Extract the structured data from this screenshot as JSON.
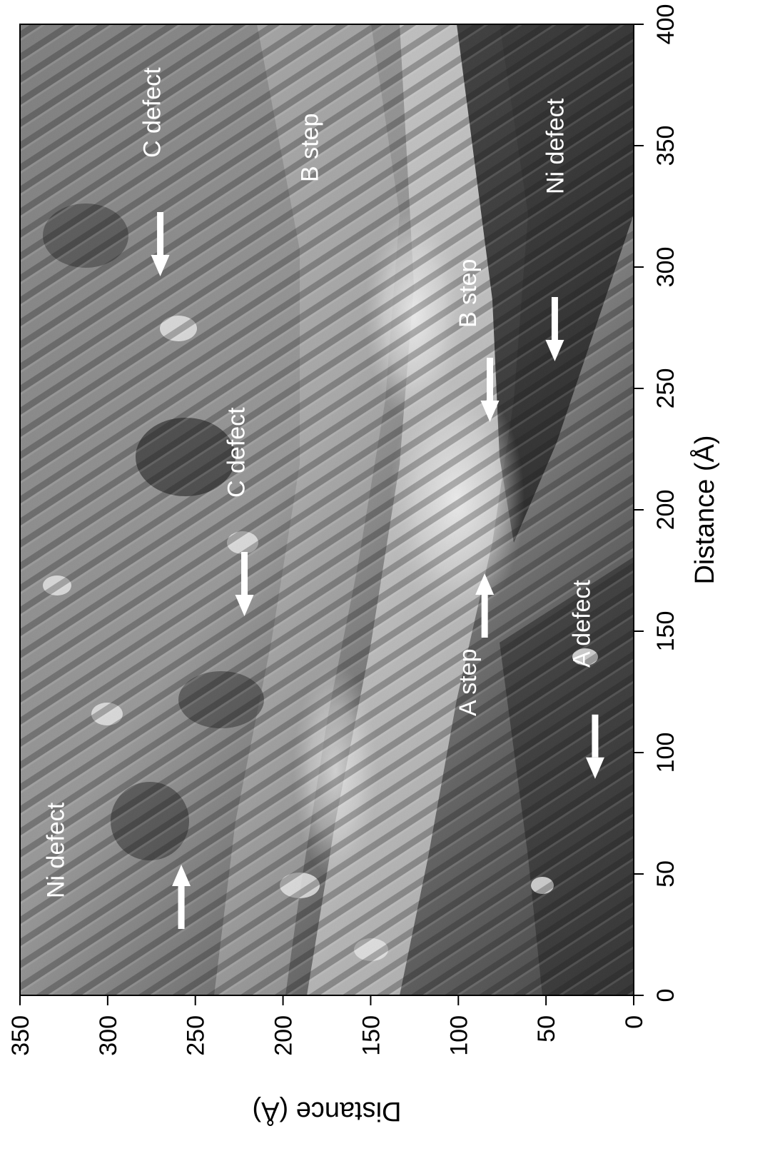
{
  "figure": {
    "x_axis": {
      "title": "Distance  (Å)",
      "range": [
        0,
        400
      ],
      "ticks": [
        0,
        50,
        100,
        150,
        200,
        250,
        300,
        350,
        400
      ]
    },
    "y_axis": {
      "title": "Distance  (Å)",
      "range": [
        0,
        350
      ],
      "ticks": [
        0,
        50,
        100,
        150,
        200,
        250,
        300,
        350
      ]
    },
    "annotations": [
      {
        "id": "ni-defect-top",
        "label": "Ni defect",
        "x": 40,
        "y": 325,
        "arrow": "right",
        "ax": 45,
        "ay": 258
      },
      {
        "id": "c-defect-top",
        "label": "C defect",
        "x": 345,
        "y": 270,
        "arrow": "left",
        "ax": 305,
        "ay": 270
      },
      {
        "id": "c-defect-mid",
        "label": "C defect",
        "x": 205,
        "y": 222,
        "arrow": "left",
        "ax": 165,
        "ay": 222
      },
      {
        "id": "b-step-top",
        "label": "B step",
        "x": 335,
        "y": 180,
        "arrow": "none"
      },
      {
        "id": "b-step-mid",
        "label": "B step",
        "x": 275,
        "y": 90,
        "arrow": "left",
        "ax": 245,
        "ay": 82
      },
      {
        "id": "a-step",
        "label": "A step",
        "x": 115,
        "y": 90,
        "arrow": "right",
        "ax": 165,
        "ay": 85
      },
      {
        "id": "ni-defect-bottom",
        "label": "Ni defect",
        "x": 330,
        "y": 40,
        "arrow": "left",
        "ax": 270,
        "ay": 45
      },
      {
        "id": "a-defect",
        "label": "A defect",
        "x": 135,
        "y": 25,
        "arrow": "left",
        "ax": 98,
        "ay": 22
      }
    ]
  }
}
